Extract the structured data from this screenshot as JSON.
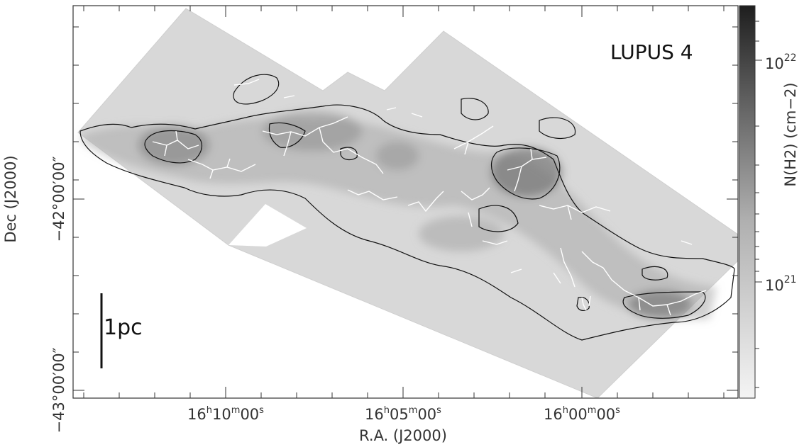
{
  "chart_data": {
    "type": "heatmap",
    "title": "LUPUS 4",
    "xlabel": "R.A. (J2000)",
    "ylabel": "Dec (J2000)",
    "colorbar_label": "N(H2) (cm−2)",
    "colorbar_scale": "log",
    "colorbar_range": [
      3e+20,
      2.6e+22
    ],
    "colormap": "greyscale",
    "scale_bar_label": "1pc",
    "x_ticks": [
      {
        "h": "16",
        "m": "10",
        "s": "00",
        "ra_hours": 16.1667
      },
      {
        "h": "16",
        "m": "05",
        "s": "00",
        "ra_hours": 16.0833
      },
      {
        "h": "16",
        "m": "00",
        "s": "00",
        "ra_hours": 16.0
      }
    ],
    "y_ticks": [
      {
        "label": "−42°00′00″",
        "dec_deg": -42.0
      },
      {
        "label": "−43°00′00″",
        "dec_deg": -43.0
      }
    ],
    "colorbar_ticks": [
      {
        "base": "10",
        "exp": "22",
        "value": 1e+22
      },
      {
        "base": "10",
        "exp": "21",
        "value": 1e+21
      }
    ],
    "contour_color": "#111111",
    "filament_color": "#ffffff"
  }
}
